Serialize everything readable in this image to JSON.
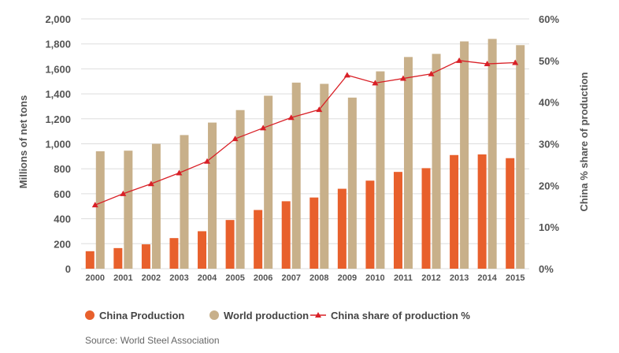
{
  "chart_data": {
    "type": "bar",
    "categories": [
      "2000",
      "2001",
      "2002",
      "2003",
      "2004",
      "2005",
      "2006",
      "2007",
      "2008",
      "2009",
      "2010",
      "2011",
      "2012",
      "2013",
      "2014",
      "2015"
    ],
    "series": [
      {
        "name": "China Production",
        "type": "bar",
        "axis": "left",
        "values": [
          140,
          165,
          195,
          245,
          300,
          390,
          470,
          540,
          570,
          640,
          705,
          775,
          805,
          910,
          915,
          885
        ]
      },
      {
        "name": "World production",
        "type": "bar",
        "axis": "left",
        "values": [
          940,
          945,
          1000,
          1070,
          1170,
          1270,
          1385,
          1490,
          1480,
          1370,
          1580,
          1695,
          1720,
          1820,
          1840,
          1790
        ]
      },
      {
        "name": "China share of production %",
        "type": "line",
        "axis": "right",
        "values": [
          15.3,
          18.0,
          20.4,
          23.0,
          25.8,
          31.2,
          33.8,
          36.3,
          38.2,
          46.5,
          44.6,
          45.7,
          46.8,
          50.0,
          49.2,
          49.5
        ]
      }
    ],
    "xlabel": "",
    "ylabel": "Millions of net tons",
    "ylabel_right": "China % share of production",
    "ylim": [
      0,
      2000
    ],
    "ylim_right": [
      0,
      60
    ],
    "yticks": [
      "0",
      "200",
      "400",
      "600",
      "800",
      "1,000",
      "1,200",
      "1,400",
      "1,600",
      "1,800",
      "2,000"
    ],
    "yticks_right": [
      "0%",
      "10%",
      "20%",
      "30%",
      "40%",
      "50%",
      "60%"
    ],
    "grid": "horizontal",
    "legend_position": "bottom-left",
    "colors": {
      "china": "#e8602c",
      "world": "#c8b08a",
      "share": "#d92027",
      "grid": "#dddddd"
    }
  },
  "legend": {
    "china": "China Production",
    "world": "World production",
    "share": "China share of production %"
  },
  "source": "Source: World Steel Association"
}
